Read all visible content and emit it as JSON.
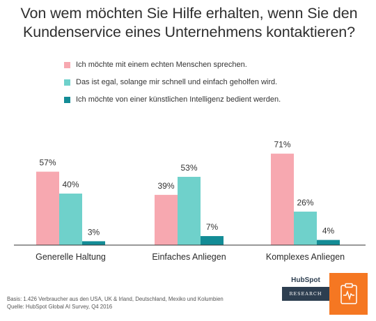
{
  "title_line1": "Von wem möchten Sie Hilfe erhalten, wenn Sie den",
  "title_line2": "Kundenservice eines Unternehmens kontaktieren?",
  "footnote_line1": "Basis: 1.426 Verbraucher aus den USA, UK & Irland, Deutschland, Mexiko und Kolumbien",
  "footnote_line2": "Quelle: HubSpot Global AI Survey, Q4 2016",
  "logo": {
    "brand": "HubSpot",
    "label": "RESEARCH",
    "orange_icon": "clipboard-pulse-icon"
  },
  "colors": {
    "series1": "#f7a8b0",
    "series2": "#6fd1cb",
    "series3": "#138c96",
    "baseline": "#333333",
    "orange": "#f57722",
    "navy": "#2d3e50"
  },
  "chart_data": {
    "type": "bar",
    "categories": [
      "Generelle Haltung",
      "Einfaches Anliegen",
      "Komplexes Anliegen"
    ],
    "series": [
      {
        "name": "Ich möchte mit einem echten Menschen sprechen.",
        "values": [
          57,
          39,
          71
        ],
        "labels": [
          "57%",
          "39%",
          "71%"
        ]
      },
      {
        "name": "Das ist egal, solange mir schnell und einfach geholfen wird.",
        "values": [
          40,
          53,
          26
        ],
        "labels": [
          "40%",
          "53%",
          "26%"
        ]
      },
      {
        "name": "Ich möchte von einer künstlichen Intelligenz bedient werden.",
        "values": [
          3,
          7,
          4
        ],
        "labels": [
          "3%",
          "7%",
          "4%"
        ]
      }
    ],
    "unit": "%",
    "legend_position": "top",
    "grid": false
  }
}
